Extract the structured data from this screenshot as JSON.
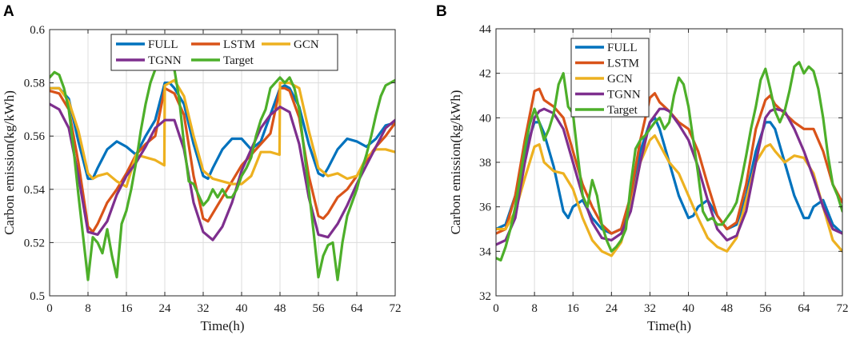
{
  "chart_data": [
    {
      "panel": "A",
      "type": "line",
      "xlabel": "Time(h)",
      "ylabel": "Carbon emission(kg/kWh)",
      "xlim": [
        0,
        72
      ],
      "ylim": [
        0.5,
        0.6
      ],
      "xticks": [
        0,
        8,
        16,
        24,
        32,
        40,
        48,
        56,
        64,
        72
      ],
      "yticks": [
        0.5,
        0.52,
        0.54,
        0.56,
        0.58,
        0.6
      ],
      "ytick_labels": [
        "0.5",
        "0.52",
        "0.54",
        "0.56",
        "0.58",
        "0.6"
      ],
      "legend_location": "top-right",
      "legend_columns": 3,
      "series": [
        {
          "name": "FULL",
          "color": "#0072BD",
          "x": [
            0,
            2,
            4,
            6,
            8,
            9,
            10,
            12,
            14,
            16,
            18,
            20,
            22,
            24,
            25,
            26,
            28,
            30,
            32,
            33,
            34,
            36,
            38,
            40,
            42,
            44,
            46,
            48,
            49,
            50,
            52,
            54,
            56,
            57,
            58,
            60,
            62,
            64,
            66,
            68,
            70,
            72
          ],
          "values": [
            0.578,
            0.578,
            0.574,
            0.558,
            0.544,
            0.544,
            0.548,
            0.555,
            0.558,
            0.556,
            0.553,
            0.56,
            0.566,
            0.58,
            0.58,
            0.578,
            0.572,
            0.557,
            0.545,
            0.544,
            0.548,
            0.555,
            0.559,
            0.559,
            0.555,
            0.558,
            0.568,
            0.578,
            0.579,
            0.578,
            0.571,
            0.557,
            0.546,
            0.545,
            0.548,
            0.555,
            0.559,
            0.558,
            0.556,
            0.559,
            0.564,
            0.565
          ]
        },
        {
          "name": "LSTM",
          "color": "#D95319",
          "x": [
            0,
            2,
            4,
            6,
            8,
            9,
            10,
            12,
            14,
            16,
            18,
            20,
            22,
            24,
            26,
            28,
            30,
            32,
            33,
            34,
            36,
            38,
            40,
            42,
            44,
            46,
            48,
            49,
            50,
            52,
            54,
            56,
            57,
            58,
            60,
            62,
            64,
            66,
            68,
            70,
            72
          ],
          "values": [
            0.577,
            0.576,
            0.57,
            0.55,
            0.526,
            0.524,
            0.527,
            0.535,
            0.54,
            0.546,
            0.553,
            0.557,
            0.56,
            0.578,
            0.576,
            0.568,
            0.545,
            0.529,
            0.528,
            0.531,
            0.537,
            0.543,
            0.549,
            0.553,
            0.557,
            0.561,
            0.578,
            0.578,
            0.577,
            0.567,
            0.545,
            0.53,
            0.529,
            0.531,
            0.537,
            0.54,
            0.545,
            0.551,
            0.556,
            0.56,
            0.565
          ]
        },
        {
          "name": "GCN",
          "color": "#EDB120",
          "x": [
            0,
            2,
            4,
            6,
            8,
            9,
            10,
            12,
            14,
            16,
            18,
            20,
            22,
            23.9,
            24,
            26,
            28,
            30,
            32,
            34,
            36,
            38,
            40,
            42,
            44,
            46,
            47.9,
            48,
            50,
            52,
            54,
            56,
            58,
            60,
            62,
            64,
            66,
            68,
            70,
            72
          ],
          "values": [
            0.578,
            0.578,
            0.573,
            0.562,
            0.546,
            0.544,
            0.545,
            0.546,
            0.543,
            0.541,
            0.553,
            0.552,
            0.551,
            0.549,
            0.579,
            0.581,
            0.575,
            0.56,
            0.547,
            0.544,
            0.543,
            0.542,
            0.542,
            0.545,
            0.554,
            0.554,
            0.553,
            0.58,
            0.58,
            0.578,
            0.562,
            0.548,
            0.545,
            0.546,
            0.544,
            0.545,
            0.552,
            0.555,
            0.555,
            0.554
          ]
        },
        {
          "name": "TGNN",
          "color": "#7E2F8E",
          "x": [
            0,
            2,
            4,
            6,
            8,
            10,
            12,
            14,
            16,
            18,
            20,
            22,
            24,
            26,
            28,
            30,
            32,
            34,
            36,
            38,
            40,
            42,
            44,
            46,
            48,
            50,
            52,
            54,
            56,
            58,
            60,
            62,
            64,
            66,
            68,
            70,
            72
          ],
          "values": [
            0.572,
            0.57,
            0.563,
            0.545,
            0.524,
            0.523,
            0.528,
            0.538,
            0.545,
            0.55,
            0.556,
            0.563,
            0.566,
            0.566,
            0.555,
            0.535,
            0.524,
            0.521,
            0.526,
            0.535,
            0.547,
            0.555,
            0.563,
            0.568,
            0.571,
            0.569,
            0.557,
            0.537,
            0.523,
            0.522,
            0.527,
            0.534,
            0.542,
            0.549,
            0.556,
            0.563,
            0.566
          ]
        },
        {
          "name": "Target",
          "color": "#4DAF2A",
          "x": [
            0,
            1,
            2,
            3,
            4,
            5,
            6,
            7,
            8,
            9,
            10,
            11,
            12,
            13,
            14,
            15,
            16,
            17,
            18,
            19,
            20,
            21,
            22,
            23,
            24,
            25,
            26,
            27,
            28,
            29,
            30,
            31,
            32,
            33,
            34,
            35,
            36,
            37,
            38,
            39,
            40,
            41,
            42,
            43,
            44,
            45,
            46,
            47,
            48,
            49,
            50,
            51,
            52,
            53,
            54,
            55,
            56,
            57,
            58,
            59,
            60,
            61,
            62,
            63,
            64,
            65,
            66,
            67,
            68,
            69,
            70,
            71,
            72
          ],
          "values": [
            0.582,
            0.584,
            0.583,
            0.578,
            0.57,
            0.555,
            0.538,
            0.522,
            0.506,
            0.522,
            0.52,
            0.516,
            0.525,
            0.515,
            0.507,
            0.527,
            0.532,
            0.54,
            0.55,
            0.562,
            0.572,
            0.58,
            0.585,
            0.588,
            0.585,
            0.587,
            0.585,
            0.574,
            0.557,
            0.543,
            0.542,
            0.538,
            0.534,
            0.536,
            0.54,
            0.537,
            0.54,
            0.537,
            0.537,
            0.54,
            0.545,
            0.548,
            0.552,
            0.56,
            0.566,
            0.57,
            0.578,
            0.58,
            0.582,
            0.58,
            0.582,
            0.578,
            0.57,
            0.555,
            0.54,
            0.524,
            0.507,
            0.515,
            0.519,
            0.52,
            0.506,
            0.52,
            0.53,
            0.535,
            0.54,
            0.547,
            0.553,
            0.56,
            0.568,
            0.575,
            0.579,
            0.58,
            0.581
          ]
        }
      ]
    },
    {
      "panel": "B",
      "type": "line",
      "xlabel": "Time(h)",
      "ylabel": "Carbon emission(kg/kWh)",
      "xlim": [
        0,
        72
      ],
      "ylim": [
        32,
        44
      ],
      "xticks": [
        0,
        8,
        16,
        24,
        32,
        40,
        48,
        56,
        64,
        72
      ],
      "yticks": [
        32,
        34,
        36,
        38,
        40,
        42,
        44
      ],
      "ytick_labels": [
        "32",
        "34",
        "36",
        "38",
        "40",
        "42",
        "44"
      ],
      "legend_location": "top-left",
      "legend_columns": 1,
      "series": [
        {
          "name": "FULL",
          "color": "#0072BD",
          "x": [
            0,
            2,
            4,
            6,
            8,
            9,
            10,
            12,
            14,
            15,
            16,
            18,
            20,
            22,
            24,
            26,
            28,
            30,
            32,
            33,
            34,
            36,
            38,
            40,
            41,
            42,
            44,
            46,
            48,
            50,
            52,
            54,
            56,
            57,
            58,
            60,
            62,
            64,
            65,
            66,
            68,
            70,
            72
          ],
          "values": [
            35.0,
            35.2,
            36.5,
            38.5,
            39.8,
            39.8,
            39.3,
            37.8,
            35.8,
            35.5,
            36.0,
            36.3,
            35.5,
            35.0,
            34.8,
            35.0,
            36.2,
            38.5,
            39.8,
            40.0,
            39.5,
            38.0,
            36.5,
            35.5,
            35.6,
            36.0,
            36.3,
            35.6,
            35.0,
            35.2,
            36.5,
            38.5,
            39.8,
            39.8,
            39.5,
            38.0,
            36.5,
            35.5,
            35.5,
            36.0,
            36.3,
            35.2,
            34.8
          ]
        },
        {
          "name": "LSTM",
          "color": "#D95319",
          "x": [
            0,
            2,
            4,
            6,
            8,
            9,
            10,
            12,
            14,
            16,
            18,
            20,
            22,
            24,
            26,
            28,
            30,
            32,
            33,
            34,
            36,
            38,
            40,
            42,
            44,
            46,
            48,
            50,
            52,
            54,
            56,
            57,
            58,
            60,
            62,
            64,
            66,
            68,
            70,
            72
          ],
          "values": [
            34.8,
            35.0,
            36.5,
            39.0,
            41.2,
            41.3,
            40.8,
            40.5,
            40.0,
            38.5,
            37.0,
            36.0,
            35.2,
            34.8,
            35.0,
            36.5,
            39.0,
            40.9,
            41.1,
            40.7,
            40.3,
            39.8,
            39.5,
            38.5,
            37.0,
            35.6,
            35.0,
            35.3,
            37.0,
            39.5,
            40.8,
            41.0,
            40.6,
            40.2,
            39.8,
            39.5,
            39.5,
            38.5,
            37.0,
            36.2
          ]
        },
        {
          "name": "GCN",
          "color": "#EDB120",
          "x": [
            0,
            2,
            4,
            6,
            8,
            9,
            10,
            12,
            14,
            16,
            18,
            20,
            22,
            24,
            26,
            28,
            30,
            32,
            33,
            34,
            36,
            38,
            40,
            42,
            44,
            46,
            48,
            50,
            52,
            54,
            56,
            57,
            58,
            60,
            62,
            64,
            66,
            68,
            70,
            72
          ],
          "values": [
            35.0,
            35.0,
            35.8,
            37.3,
            38.7,
            38.8,
            38.0,
            37.6,
            37.5,
            36.8,
            35.5,
            34.5,
            34.0,
            33.8,
            34.4,
            36.0,
            38.0,
            39.0,
            39.2,
            38.8,
            38.0,
            37.5,
            36.5,
            35.5,
            34.6,
            34.2,
            34.0,
            34.6,
            36.3,
            38.0,
            38.7,
            38.8,
            38.5,
            38.0,
            38.3,
            38.2,
            37.5,
            36.0,
            34.5,
            34.0
          ]
        },
        {
          "name": "TGNN",
          "color": "#7E2F8E",
          "x": [
            0,
            2,
            4,
            6,
            8,
            9,
            10,
            12,
            14,
            16,
            18,
            20,
            22,
            24,
            26,
            28,
            30,
            32,
            34,
            35,
            36,
            38,
            40,
            42,
            44,
            46,
            48,
            50,
            52,
            54,
            56,
            57,
            58,
            60,
            62,
            64,
            66,
            68,
            70,
            72
          ],
          "values": [
            34.3,
            34.5,
            35.5,
            38.0,
            40.0,
            40.3,
            40.4,
            40.2,
            39.5,
            38.0,
            36.5,
            35.3,
            34.6,
            34.5,
            34.8,
            35.8,
            38.0,
            39.8,
            40.4,
            40.4,
            40.3,
            39.7,
            39.0,
            37.8,
            36.3,
            35.0,
            34.5,
            34.7,
            35.8,
            38.0,
            40.0,
            40.3,
            40.4,
            40.3,
            39.5,
            38.5,
            37.3,
            36.0,
            35.0,
            34.8
          ]
        },
        {
          "name": "Target",
          "color": "#4DAF2A",
          "x": [
            0,
            1,
            2,
            3,
            4,
            5,
            6,
            7,
            8,
            9,
            10,
            11,
            12,
            13,
            14,
            15,
            16,
            17,
            18,
            19,
            20,
            21,
            22,
            23,
            24,
            25,
            26,
            27,
            28,
            29,
            30,
            31,
            32,
            33,
            34,
            35,
            36,
            37,
            38,
            39,
            40,
            41,
            42,
            43,
            44,
            45,
            46,
            47,
            48,
            49,
            50,
            51,
            52,
            53,
            54,
            55,
            56,
            57,
            58,
            59,
            60,
            61,
            62,
            63,
            64,
            65,
            66,
            67,
            68,
            69,
            70,
            71,
            72
          ],
          "values": [
            33.7,
            33.6,
            34.2,
            35.0,
            36.0,
            37.3,
            38.6,
            39.7,
            40.4,
            39.8,
            39.0,
            39.5,
            40.2,
            41.5,
            42.0,
            40.5,
            40.2,
            38.3,
            36.5,
            36.0,
            37.2,
            36.5,
            35.2,
            34.5,
            34.0,
            34.2,
            34.5,
            35.0,
            37.0,
            38.6,
            39.0,
            39.2,
            39.5,
            39.8,
            40.0,
            39.5,
            39.8,
            41.0,
            41.8,
            41.5,
            40.5,
            39.0,
            37.5,
            35.8,
            35.4,
            35.5,
            35.2,
            35.2,
            35.5,
            35.8,
            36.2,
            37.2,
            38.3,
            39.5,
            40.5,
            41.7,
            42.2,
            41.3,
            40.3,
            39.8,
            40.3,
            41.2,
            42.3,
            42.5,
            42.0,
            42.3,
            42.1,
            41.3,
            40.0,
            38.3,
            37.0,
            36.5,
            35.8
          ]
        }
      ]
    }
  ]
}
